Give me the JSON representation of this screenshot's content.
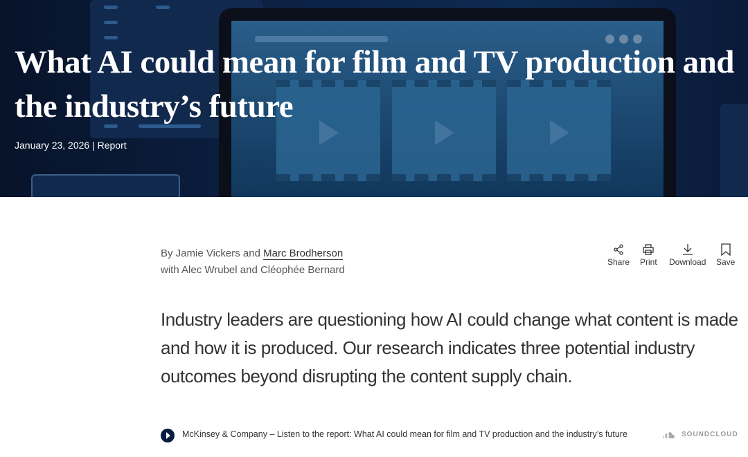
{
  "hero": {
    "title": "What AI could mean for film and TV production and the industry’s future",
    "date": "January 23, 2026",
    "separator": "|",
    "type": "Report"
  },
  "byline": {
    "prefix": "By Jamie Vickers and",
    "author_link": "Marc Brodherson",
    "line2": "with Alec Wrubel and Cléophée Bernard"
  },
  "tools": [
    {
      "label": "Share",
      "icon": "share-icon"
    },
    {
      "label": "Print",
      "icon": "print-icon"
    },
    {
      "label": "Download",
      "icon": "download-icon"
    },
    {
      "label": "Save",
      "icon": "bookmark-icon"
    }
  ],
  "lede": "Industry leaders are questioning how AI could change what content is made and how it is produced. Our research indicates three potential industry outcomes beyond disrupting the content supply chain.",
  "player": {
    "text": "McKinsey & Company – Listen to the report: What AI could mean for film and TV production and the industry’s future",
    "brand": "SOUNDCLOUD",
    "button_color": "#051c3d"
  }
}
